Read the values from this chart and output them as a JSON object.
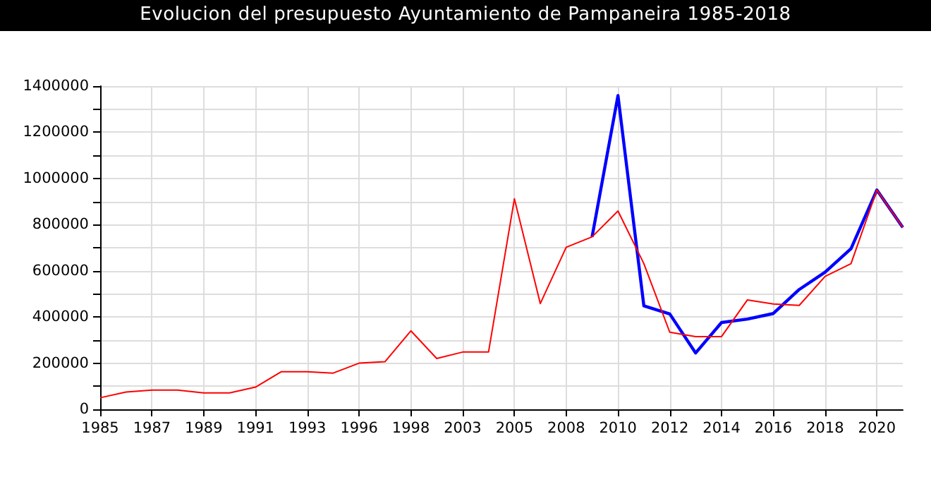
{
  "chart_data": {
    "type": "line",
    "title": "Evolucion del presupuesto Ayuntamiento de Pampaneira 1985-2018",
    "categories": [
      "1985",
      null,
      "1987",
      null,
      "1989",
      null,
      "1991",
      null,
      "1993",
      null,
      "1996",
      null,
      "1998",
      null,
      "2003",
      null,
      "2005",
      null,
      "2008",
      null,
      "2010",
      null,
      "2012",
      null,
      "2014",
      null,
      "2016",
      null,
      "2018",
      null,
      "2020",
      null
    ],
    "series": [
      {
        "color": "#0000ff",
        "values": [
          null,
          null,
          null,
          null,
          null,
          null,
          null,
          null,
          null,
          null,
          null,
          null,
          null,
          null,
          null,
          null,
          null,
          null,
          null,
          747000,
          1359000,
          448000,
          413000,
          244000,
          376000,
          391000,
          415000,
          519000,
          594000,
          696000,
          950000,
          788000
        ]
      },
      {
        "color": "#ff0000",
        "values": [
          50000,
          75000,
          83000,
          83000,
          71000,
          71000,
          96000,
          163000,
          163000,
          157000,
          200000,
          206000,
          340000,
          220000,
          248000,
          248000,
          912000,
          458000,
          702000,
          747000,
          859000,
          631000,
          334000,
          315000,
          315000,
          474000,
          456000,
          450000,
          576000,
          631000,
          950000,
          788000
        ]
      }
    ],
    "ylim": [
      0,
      1400000
    ],
    "yticks": [
      0,
      200000,
      400000,
      600000,
      800000,
      1000000,
      1200000,
      1400000
    ],
    "grid": true,
    "marker": "none"
  }
}
